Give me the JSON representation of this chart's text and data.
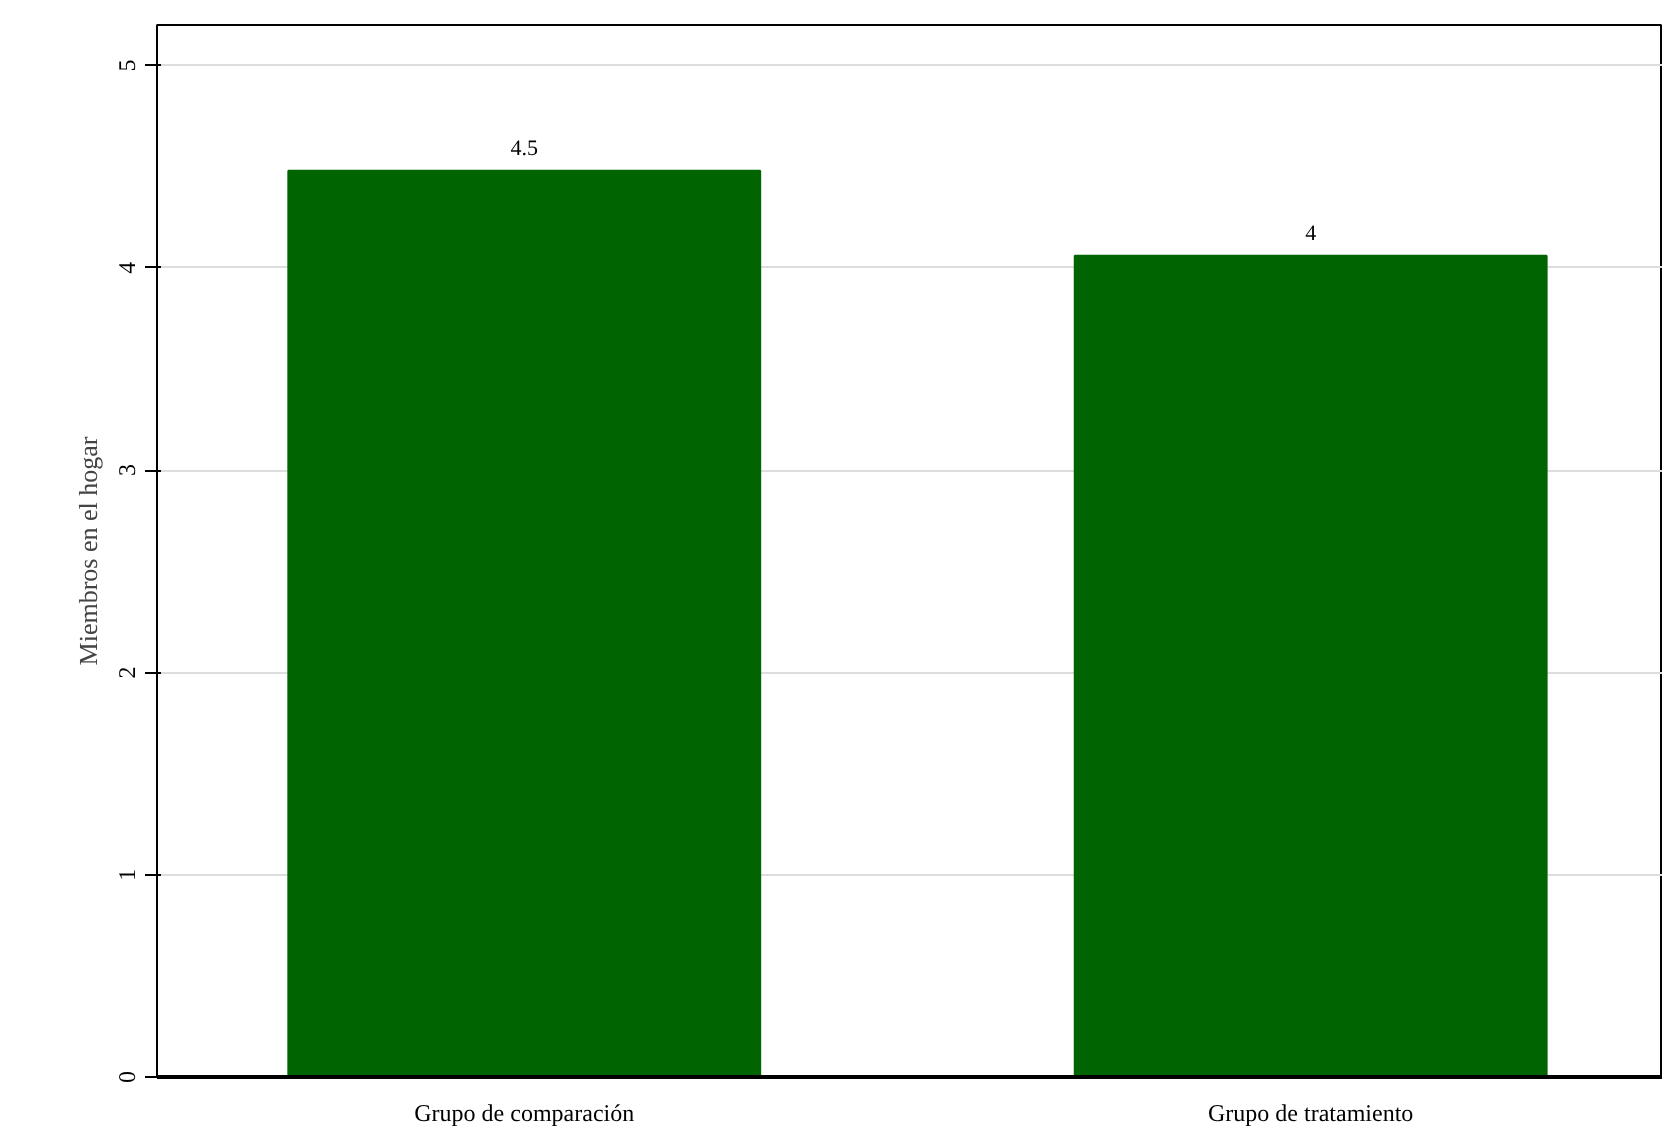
{
  "chart_data": {
    "type": "bar",
    "ylabel": "Miembros en el hogar",
    "categories": [
      "Grupo de comparación",
      "Grupo de tratamiento"
    ],
    "values": [
      4.48,
      4.06
    ],
    "value_labels": [
      "4.5",
      "4"
    ],
    "color": "#006400",
    "ylim": [
      0,
      5.2
    ],
    "yticks": [
      0,
      1,
      2,
      3,
      4,
      5
    ],
    "grid": "y"
  }
}
